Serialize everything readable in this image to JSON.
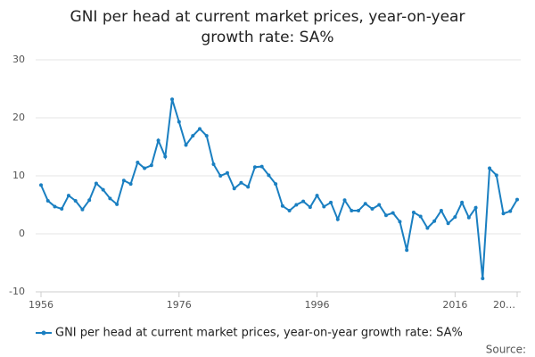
{
  "chart_data": {
    "type": "line",
    "title": "GNI per head at current market prices, year-on-year growth rate: SA%",
    "x": [
      1956,
      1957,
      1958,
      1959,
      1960,
      1961,
      1962,
      1963,
      1964,
      1965,
      1966,
      1967,
      1968,
      1969,
      1970,
      1971,
      1972,
      1973,
      1974,
      1975,
      1976,
      1977,
      1978,
      1979,
      1980,
      1981,
      1982,
      1983,
      1984,
      1985,
      1986,
      1987,
      1988,
      1989,
      1990,
      1991,
      1992,
      1993,
      1994,
      1995,
      1996,
      1997,
      1998,
      1999,
      2000,
      2001,
      2002,
      2003,
      2004,
      2005,
      2006,
      2007,
      2008,
      2009,
      2010,
      2011,
      2012,
      2013,
      2014,
      2015,
      2016,
      2017,
      2018,
      2019,
      2020,
      2021,
      2022,
      2023,
      2024,
      2025
    ],
    "series": [
      {
        "name": "GNI per head at current market prices, year-on-year growth rate: SA%",
        "color": "#1a7fc1",
        "values": [
          8.4,
          5.7,
          4.7,
          4.3,
          6.6,
          5.7,
          4.2,
          5.8,
          8.7,
          7.6,
          6.1,
          5.1,
          9.2,
          8.6,
          12.3,
          11.3,
          11.8,
          16.1,
          13.3,
          23.2,
          19.3,
          15.3,
          16.9,
          18.1,
          16.9,
          12.0,
          10.0,
          10.5,
          7.8,
          8.8,
          8.1,
          11.5,
          11.6,
          10.1,
          8.6,
          4.8,
          4.0,
          5.0,
          5.6,
          4.6,
          6.6,
          4.7,
          5.4,
          2.5,
          5.8,
          4.0,
          4.0,
          5.2,
          4.3,
          5.0,
          3.2,
          3.6,
          2.1,
          -2.8,
          3.7,
          3.0,
          1.0,
          2.2,
          4.0,
          1.8,
          2.9,
          5.4,
          2.8,
          4.5,
          -7.7,
          11.3,
          10.1,
          3.5,
          3.9,
          5.9
        ]
      }
    ],
    "xlim": [
      1956,
      2025
    ],
    "xticks": [
      1956,
      1976,
      1996,
      2016,
      {
        "value": 2025,
        "label": "20…"
      }
    ],
    "ylim": [
      -10,
      30
    ],
    "yticks": [
      -10,
      0,
      10,
      20,
      30
    ],
    "grid": true,
    "source": "Source:"
  }
}
